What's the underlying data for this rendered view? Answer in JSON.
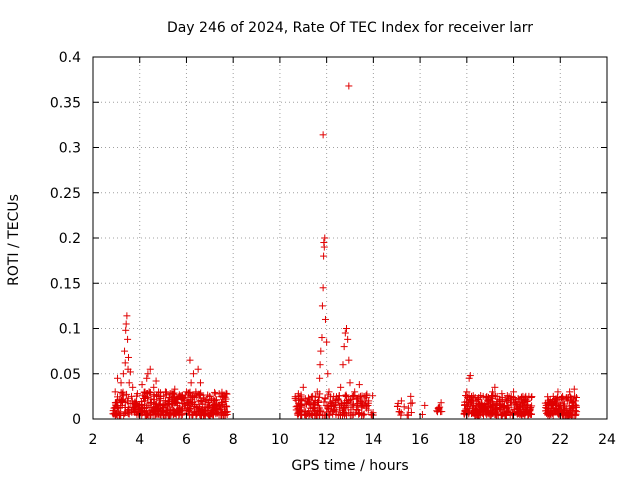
{
  "chart_data": {
    "type": "scatter",
    "title": "Day 246 of 2024, Rate Of TEC Index for receiver larr",
    "xlabel": "GPS time / hours",
    "ylabel": "ROTI / TECUs",
    "xlim": [
      2,
      24
    ],
    "ylim": [
      0,
      0.4
    ],
    "grid": true,
    "marker": "+",
    "color": "#e00000",
    "x_ticks": [
      2,
      4,
      6,
      8,
      10,
      12,
      14,
      16,
      18,
      20,
      22,
      24
    ],
    "x_tick_labels": [
      "2",
      "4",
      "6",
      "8",
      "10",
      "12",
      "14",
      "16",
      "18",
      "20",
      "22",
      "24"
    ],
    "y_ticks": [
      0,
      0.05,
      0.1,
      0.15,
      0.2,
      0.25,
      0.3,
      0.35,
      0.4
    ],
    "y_tick_labels": [
      "0",
      "0.05",
      "0.1",
      "0.15",
      "0.2",
      "0.25",
      "0.3",
      "0.35",
      "0.4"
    ],
    "series": [
      {
        "name": "ROTI",
        "points": [
          [
            2.9,
            0.012
          ],
          [
            2.95,
            0.03
          ],
          [
            3.0,
            0.018
          ],
          [
            3.05,
            0.045
          ],
          [
            3.1,
            0.008
          ],
          [
            3.15,
            0.022
          ],
          [
            3.2,
            0.04
          ],
          [
            3.25,
            0.015
          ],
          [
            3.3,
            0.05
          ],
          [
            3.35,
            0.075
          ],
          [
            3.38,
            0.062
          ],
          [
            3.4,
            0.098
          ],
          [
            3.42,
            0.105
          ],
          [
            3.45,
            0.114
          ],
          [
            3.48,
            0.088
          ],
          [
            3.5,
            0.055
          ],
          [
            3.52,
            0.068
          ],
          [
            3.55,
            0.04
          ],
          [
            3.6,
            0.052
          ],
          [
            3.65,
            0.025
          ],
          [
            3.7,
            0.035
          ],
          [
            3.8,
            0.012
          ],
          [
            3.9,
            0.028
          ],
          [
            4.0,
            0.015
          ],
          [
            4.1,
            0.038
          ],
          [
            4.2,
            0.02
          ],
          [
            4.3,
            0.045
          ],
          [
            4.35,
            0.05
          ],
          [
            4.4,
            0.03
          ],
          [
            4.45,
            0.055
          ],
          [
            4.5,
            0.018
          ],
          [
            4.6,
            0.035
          ],
          [
            4.7,
            0.042
          ],
          [
            4.8,
            0.01
          ],
          [
            4.9,
            0.025
          ],
          [
            5.0,
            0.015
          ],
          [
            5.1,
            0.03
          ],
          [
            5.2,
            0.012
          ],
          [
            5.3,
            0.028
          ],
          [
            5.4,
            0.02
          ],
          [
            5.5,
            0.033
          ],
          [
            5.6,
            0.015
          ],
          [
            5.7,
            0.025
          ],
          [
            5.8,
            0.01
          ],
          [
            5.9,
            0.022
          ],
          [
            6.0,
            0.03
          ],
          [
            6.1,
            0.018
          ],
          [
            6.15,
            0.065
          ],
          [
            6.2,
            0.04
          ],
          [
            6.3,
            0.05
          ],
          [
            6.4,
            0.03
          ],
          [
            6.5,
            0.055
          ],
          [
            6.6,
            0.04
          ],
          [
            6.7,
            0.02
          ],
          [
            6.8,
            0.012
          ],
          [
            7.0,
            0.025
          ],
          [
            7.1,
            0.015
          ],
          [
            7.2,
            0.02
          ],
          [
            7.3,
            0.01
          ],
          [
            7.4,
            0.028
          ],
          [
            7.5,
            0.018
          ],
          [
            7.6,
            0.024
          ],
          [
            3.0,
            0.005
          ],
          [
            3.5,
            0.008
          ],
          [
            4.0,
            0.006
          ],
          [
            4.5,
            0.01
          ],
          [
            5.0,
            0.005
          ],
          [
            5.5,
            0.007
          ],
          [
            6.0,
            0.006
          ],
          [
            6.5,
            0.008
          ],
          [
            7.0,
            0.005
          ],
          [
            7.6,
            0.004
          ],
          [
            10.7,
            0.01
          ],
          [
            10.8,
            0.025
          ],
          [
            10.9,
            0.015
          ],
          [
            11.0,
            0.035
          ],
          [
            11.1,
            0.008
          ],
          [
            11.2,
            0.02
          ],
          [
            11.3,
            0.012
          ],
          [
            11.4,
            0.025
          ],
          [
            11.5,
            0.01
          ],
          [
            11.6,
            0.03
          ],
          [
            11.65,
            0.02
          ],
          [
            11.7,
            0.045
          ],
          [
            11.72,
            0.06
          ],
          [
            11.75,
            0.075
          ],
          [
            11.8,
            0.09
          ],
          [
            11.82,
            0.125
          ],
          [
            11.85,
            0.145
          ],
          [
            11.87,
            0.18
          ],
          [
            11.88,
            0.195
          ],
          [
            11.9,
            0.19
          ],
          [
            11.92,
            0.2
          ],
          [
            11.85,
            0.314
          ],
          [
            11.95,
            0.11
          ],
          [
            12.0,
            0.085
          ],
          [
            12.05,
            0.05
          ],
          [
            12.1,
            0.03
          ],
          [
            12.2,
            0.015
          ],
          [
            12.3,
            0.025
          ],
          [
            12.4,
            0.01
          ],
          [
            12.5,
            0.02
          ],
          [
            12.6,
            0.035
          ],
          [
            12.7,
            0.06
          ],
          [
            12.75,
            0.08
          ],
          [
            12.8,
            0.095
          ],
          [
            12.85,
            0.1
          ],
          [
            12.9,
            0.088
          ],
          [
            12.95,
            0.065
          ],
          [
            12.95,
            0.368
          ],
          [
            13.0,
            0.04
          ],
          [
            13.1,
            0.025
          ],
          [
            13.2,
            0.03
          ],
          [
            13.3,
            0.015
          ],
          [
            13.4,
            0.038
          ],
          [
            13.5,
            0.02
          ],
          [
            13.6,
            0.025
          ],
          [
            13.7,
            0.012
          ],
          [
            13.8,
            0.02
          ],
          [
            15.1,
            0.008
          ],
          [
            15.2,
            0.02
          ],
          [
            15.5,
            0.012
          ],
          [
            15.6,
            0.025
          ],
          [
            16.1,
            0.005
          ],
          [
            16.2,
            0.015
          ],
          [
            16.8,
            0.012
          ],
          [
            16.9,
            0.018
          ],
          [
            17.9,
            0.015
          ],
          [
            18.0,
            0.03
          ],
          [
            18.1,
            0.045
          ],
          [
            18.15,
            0.048
          ],
          [
            18.2,
            0.025
          ],
          [
            18.3,
            0.012
          ],
          [
            18.4,
            0.02
          ],
          [
            18.6,
            0.015
          ],
          [
            18.7,
            0.025
          ],
          [
            18.8,
            0.01
          ],
          [
            18.9,
            0.022
          ],
          [
            19.0,
            0.018
          ],
          [
            19.1,
            0.03
          ],
          [
            19.2,
            0.035
          ],
          [
            19.3,
            0.025
          ],
          [
            19.4,
            0.012
          ],
          [
            19.5,
            0.028
          ],
          [
            19.6,
            0.015
          ],
          [
            19.7,
            0.02
          ],
          [
            19.8,
            0.01
          ],
          [
            19.9,
            0.025
          ],
          [
            20.0,
            0.03
          ],
          [
            20.1,
            0.018
          ],
          [
            20.2,
            0.022
          ],
          [
            20.3,
            0.012
          ],
          [
            20.4,
            0.025
          ],
          [
            20.5,
            0.015
          ],
          [
            20.6,
            0.02
          ],
          [
            20.7,
            0.01
          ],
          [
            21.4,
            0.015
          ],
          [
            21.5,
            0.02
          ],
          [
            21.6,
            0.012
          ],
          [
            21.7,
            0.025
          ],
          [
            21.8,
            0.018
          ],
          [
            21.9,
            0.03
          ],
          [
            22.0,
            0.015
          ],
          [
            22.1,
            0.025
          ],
          [
            22.2,
            0.01
          ],
          [
            22.3,
            0.02
          ],
          [
            22.4,
            0.03
          ],
          [
            22.5,
            0.015
          ],
          [
            22.6,
            0.033
          ],
          [
            22.65,
            0.02
          ],
          [
            10.8,
            0.006
          ],
          [
            11.4,
            0.004
          ],
          [
            12.4,
            0.005
          ],
          [
            13.4,
            0.006
          ],
          [
            18.2,
            0.006
          ],
          [
            19.2,
            0.005
          ],
          [
            20.2,
            0.006
          ],
          [
            21.6,
            0.005
          ],
          [
            22.4,
            0.006
          ]
        ]
      }
    ],
    "clusters": [
      {
        "xmin": 2.85,
        "xmax": 7.75,
        "ylo": 0.004,
        "yhi": 0.03,
        "count": 420,
        "seed": 11
      },
      {
        "xmin": 10.65,
        "xmax": 14.0,
        "ylo": 0.004,
        "yhi": 0.028,
        "count": 200,
        "seed": 23
      },
      {
        "xmin": 15.0,
        "xmax": 15.7,
        "ylo": 0.004,
        "yhi": 0.018,
        "count": 12,
        "seed": 31
      },
      {
        "xmin": 16.7,
        "xmax": 17.0,
        "ylo": 0.008,
        "yhi": 0.016,
        "count": 8,
        "seed": 37
      },
      {
        "xmin": 17.85,
        "xmax": 20.8,
        "ylo": 0.004,
        "yhi": 0.026,
        "count": 260,
        "seed": 41
      },
      {
        "xmin": 21.35,
        "xmax": 22.7,
        "ylo": 0.004,
        "yhi": 0.026,
        "count": 130,
        "seed": 53
      }
    ]
  }
}
